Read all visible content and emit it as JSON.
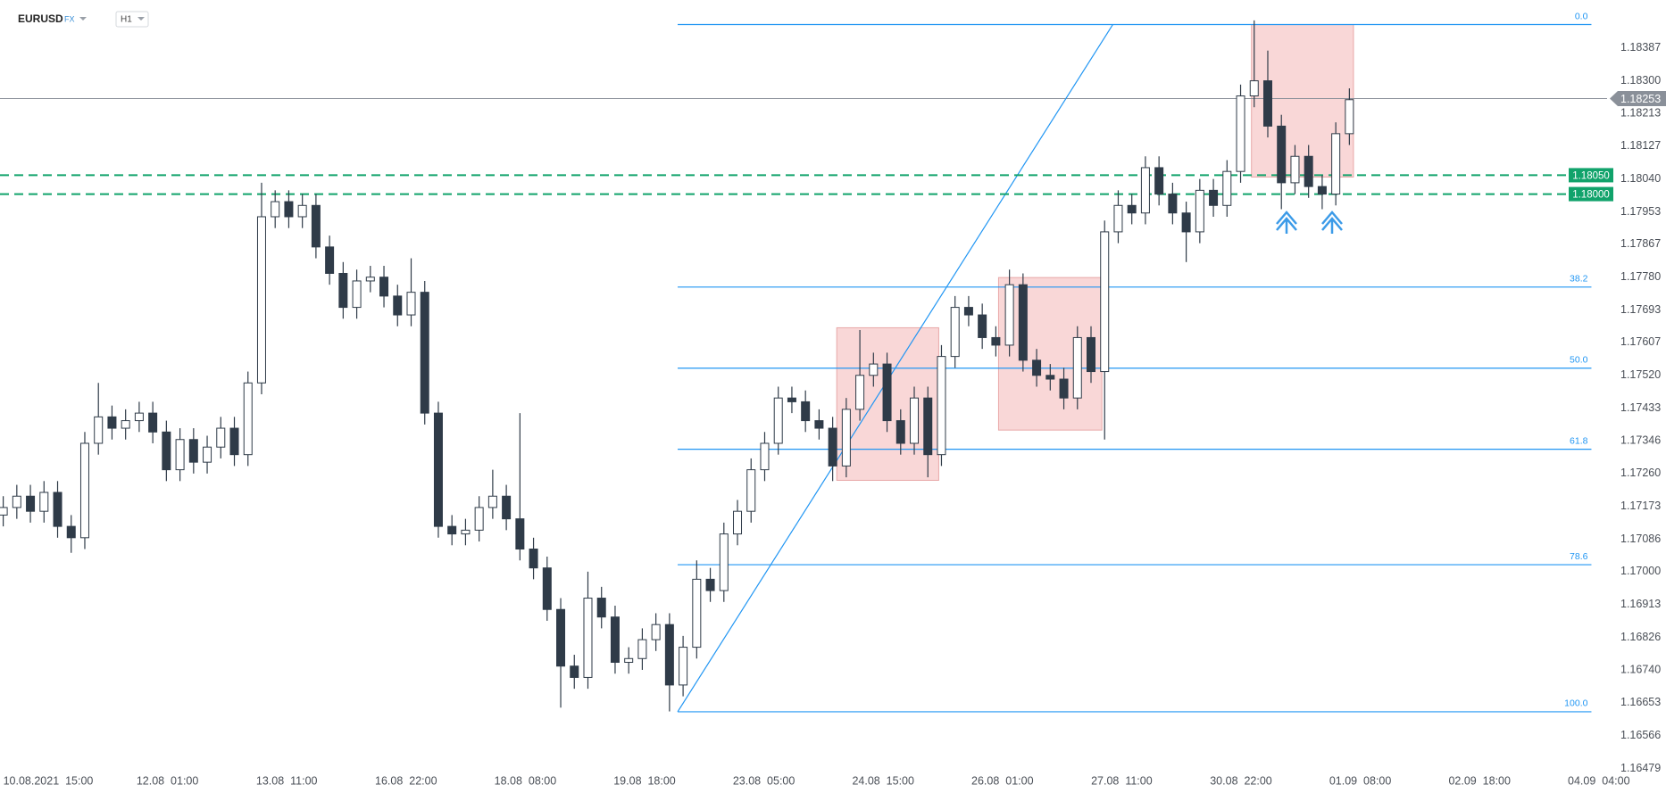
{
  "header": {
    "symbol": "EURUSD",
    "market": "FX",
    "timeframe": "H1"
  },
  "chart_data": {
    "type": "candlestick",
    "x_labels": [
      "10.08.2021  15:00",
      "12.08  01:00",
      "13.08  11:00",
      "16.08  22:00",
      "18.08  08:00",
      "19.08  18:00",
      "23.08  05:00",
      "24.08  15:00",
      "26.08  01:00",
      "27.08  11:00",
      "30.08  22:00",
      "01.09  08:00",
      "02.09  18:00",
      "04.09  04:00"
    ],
    "candles": {
      "open": [
        1.1715,
        1.1717,
        1.172,
        1.1716,
        1.1721,
        1.1712,
        1.1709,
        1.1734,
        1.1741,
        1.1738,
        1.174,
        1.1742,
        1.1737,
        1.1727,
        1.1735,
        1.1729,
        1.1733,
        1.1738,
        1.1731,
        1.175,
        1.1794,
        1.1798,
        1.1794,
        1.1797,
        1.1786,
        1.1779,
        1.177,
        1.1777,
        1.1778,
        1.1773,
        1.1768,
        1.1774,
        1.1742,
        1.1712,
        1.171,
        1.1711,
        1.1717,
        1.172,
        1.1714,
        1.1706,
        1.1701,
        1.169,
        1.1675,
        1.1672,
        1.1693,
        1.1688,
        1.1676,
        1.1677,
        1.1682,
        1.1686,
        1.167,
        1.168,
        1.1698,
        1.1695,
        1.171,
        1.1716,
        1.1727,
        1.1734,
        1.1746,
        1.1745,
        1.174,
        1.1738,
        1.1728,
        1.1743,
        1.1752,
        1.1755,
        1.174,
        1.1734,
        1.1746,
        1.1731,
        1.1757,
        1.177,
        1.1768,
        1.1762,
        1.176,
        1.1776,
        1.1756,
        1.1752,
        1.1751,
        1.1746,
        1.1762,
        1.1753,
        1.179,
        1.1797,
        1.1795,
        1.1807,
        1.18,
        1.1795,
        1.179,
        1.1801,
        1.1797,
        1.1806,
        1.1826,
        1.183,
        1.1818,
        1.1803,
        1.181,
        1.1802,
        1.18,
        1.1816
      ],
      "high": [
        1.172,
        1.1723,
        1.1723,
        1.1724,
        1.1724,
        1.1715,
        1.1737,
        1.175,
        1.1744,
        1.1743,
        1.1745,
        1.1745,
        1.174,
        1.1738,
        1.1738,
        1.1736,
        1.1741,
        1.1741,
        1.1753,
        1.1803,
        1.1801,
        1.1801,
        1.18,
        1.18,
        1.1789,
        1.1782,
        1.178,
        1.1781,
        1.1781,
        1.1776,
        1.1783,
        1.1777,
        1.1745,
        1.1715,
        1.1714,
        1.172,
        1.1727,
        1.1723,
        1.1742,
        1.1709,
        1.1704,
        1.1693,
        1.1678,
        1.17,
        1.1696,
        1.1691,
        1.168,
        1.1685,
        1.1689,
        1.1689,
        1.1683,
        1.1703,
        1.1701,
        1.1713,
        1.1719,
        1.173,
        1.1737,
        1.1749,
        1.1749,
        1.1748,
        1.1743,
        1.1741,
        1.1746,
        1.1764,
        1.1758,
        1.1758,
        1.1743,
        1.1749,
        1.1749,
        1.176,
        1.1773,
        1.1773,
        1.1771,
        1.1765,
        1.178,
        1.1779,
        1.1759,
        1.1755,
        1.1754,
        1.1765,
        1.1765,
        1.1793,
        1.1801,
        1.18,
        1.181,
        1.181,
        1.1803,
        1.1798,
        1.1804,
        1.1804,
        1.1809,
        1.1829,
        1.1846,
        1.1838,
        1.1821,
        1.1813,
        1.1813,
        1.1805,
        1.1819,
        1.1828
      ],
      "low": [
        1.1712,
        1.1714,
        1.1713,
        1.1713,
        1.1709,
        1.1705,
        1.1706,
        1.1731,
        1.1735,
        1.1735,
        1.1737,
        1.1734,
        1.1724,
        1.1724,
        1.1726,
        1.1726,
        1.173,
        1.1728,
        1.1728,
        1.1747,
        1.1791,
        1.1791,
        1.1791,
        1.1783,
        1.1776,
        1.1767,
        1.1767,
        1.1774,
        1.177,
        1.1765,
        1.1765,
        1.1739,
        1.1709,
        1.1707,
        1.1707,
        1.1708,
        1.1714,
        1.1711,
        1.1703,
        1.1698,
        1.1687,
        1.1664,
        1.1669,
        1.1669,
        1.1685,
        1.1673,
        1.1673,
        1.1674,
        1.1679,
        1.1663,
        1.1667,
        1.1677,
        1.1692,
        1.1692,
        1.1707,
        1.1713,
        1.1724,
        1.1731,
        1.1742,
        1.1737,
        1.1735,
        1.1724,
        1.1725,
        1.174,
        1.1749,
        1.1737,
        1.1731,
        1.1731,
        1.1725,
        1.1728,
        1.1754,
        1.1765,
        1.1759,
        1.1757,
        1.1757,
        1.1753,
        1.1749,
        1.1748,
        1.1743,
        1.1743,
        1.175,
        1.1735,
        1.1787,
        1.1792,
        1.1792,
        1.1797,
        1.1792,
        1.1782,
        1.1787,
        1.1794,
        1.1794,
        1.1803,
        1.1823,
        1.1815,
        1.1796,
        1.18,
        1.1799,
        1.1796,
        1.1797,
        1.1813
      ],
      "close": [
        1.1717,
        1.172,
        1.1716,
        1.1721,
        1.1712,
        1.1709,
        1.1734,
        1.1741,
        1.1738,
        1.174,
        1.1742,
        1.1737,
        1.1727,
        1.1735,
        1.1729,
        1.1733,
        1.1738,
        1.1731,
        1.175,
        1.1794,
        1.1798,
        1.1794,
        1.1797,
        1.1786,
        1.1779,
        1.177,
        1.1777,
        1.1778,
        1.1773,
        1.1768,
        1.1774,
        1.1742,
        1.1712,
        1.171,
        1.1711,
        1.1717,
        1.172,
        1.1714,
        1.1706,
        1.1701,
        1.169,
        1.1675,
        1.1672,
        1.1693,
        1.1688,
        1.1676,
        1.1677,
        1.1682,
        1.1686,
        1.167,
        1.168,
        1.1698,
        1.1695,
        1.171,
        1.1716,
        1.1727,
        1.1734,
        1.1746,
        1.1745,
        1.174,
        1.1738,
        1.1728,
        1.1743,
        1.1752,
        1.1755,
        1.174,
        1.1734,
        1.1746,
        1.1731,
        1.1757,
        1.177,
        1.1768,
        1.1762,
        1.176,
        1.1776,
        1.1756,
        1.1752,
        1.1751,
        1.1746,
        1.1762,
        1.1753,
        1.179,
        1.1797,
        1.1795,
        1.1807,
        1.18,
        1.1795,
        1.179,
        1.1801,
        1.1797,
        1.1806,
        1.1826,
        1.183,
        1.1818,
        1.1803,
        1.181,
        1.1802,
        1.18,
        1.1816,
        1.1825
      ]
    },
    "up_color": "#ffffff",
    "down_color": "#2f3b48",
    "wick_color": "#2f3b48",
    "ylim": [
      1.16473,
      1.18514
    ],
    "yticks": [
      {
        "value": 1.18387,
        "label": "1.18387"
      },
      {
        "value": 1.183,
        "label": "1.18300"
      },
      {
        "value": 1.18213,
        "label": "1.18213"
      },
      {
        "value": 1.18127,
        "label": "1.18127"
      },
      {
        "value": 1.1804,
        "label": "1.18040"
      },
      {
        "value": 1.17953,
        "label": "1.17953"
      },
      {
        "value": 1.17867,
        "label": "1.17867"
      },
      {
        "value": 1.1778,
        "label": "1.17780"
      },
      {
        "value": 1.17693,
        "label": "1.17693"
      },
      {
        "value": 1.17607,
        "label": "1.17607"
      },
      {
        "value": 1.1752,
        "label": "1.17520"
      },
      {
        "value": 1.17433,
        "label": "1.17433"
      },
      {
        "value": 1.17346,
        "label": "1.17346"
      },
      {
        "value": 1.1726,
        "label": "1.17260"
      },
      {
        "value": 1.17173,
        "label": "1.17173"
      },
      {
        "value": 1.17086,
        "label": "1.17086"
      },
      {
        "value": 1.17,
        "label": "1.17000"
      },
      {
        "value": 1.16913,
        "label": "1.16913"
      },
      {
        "value": 1.16826,
        "label": "1.16826"
      },
      {
        "value": 1.1674,
        "label": "1.16740"
      },
      {
        "value": 1.16653,
        "label": "1.16653"
      },
      {
        "value": 1.16566,
        "label": "1.16566"
      },
      {
        "value": 1.16479,
        "label": "1.16479"
      }
    ],
    "grid": false,
    "current_price": {
      "value": 1.18253,
      "label": "1.18253",
      "color": "#8a9099"
    },
    "levels": [
      {
        "value": 1.1805,
        "label": "1.18050",
        "color": "#11a36b"
      },
      {
        "value": 1.18,
        "label": "1.18000",
        "color": "#11a36b"
      }
    ],
    "fibonacci": {
      "low": 1.16629,
      "high": 1.18449,
      "start_index": 49.6,
      "end_index": 116.8,
      "color": "#2196f3",
      "levels": [
        {
          "value": 0,
          "label": "0.0"
        },
        {
          "value": 38.2,
          "label": "38.2"
        },
        {
          "value": 50,
          "label": "50.0"
        },
        {
          "value": 61.8,
          "label": "61.8"
        },
        {
          "value": 78.6,
          "label": "78.6"
        },
        {
          "value": 100,
          "label": "100.0"
        }
      ]
    },
    "trend_line": {
      "x": [
        49.6,
        81.6
      ],
      "y": [
        1.16629,
        1.18449
      ],
      "color": "#2196f3"
    },
    "zones": [
      {
        "x": [
          61.3,
          68.8
        ],
        "y": [
          1.17242,
          1.17646
        ]
      },
      {
        "x": [
          73.2,
          80.8
        ],
        "y": [
          1.17375,
          1.17779
        ]
      },
      {
        "x": [
          91.8,
          99.3
        ],
        "y": [
          1.18045,
          1.18449
        ]
      }
    ],
    "zone_color": "#f7c9c9"
  }
}
